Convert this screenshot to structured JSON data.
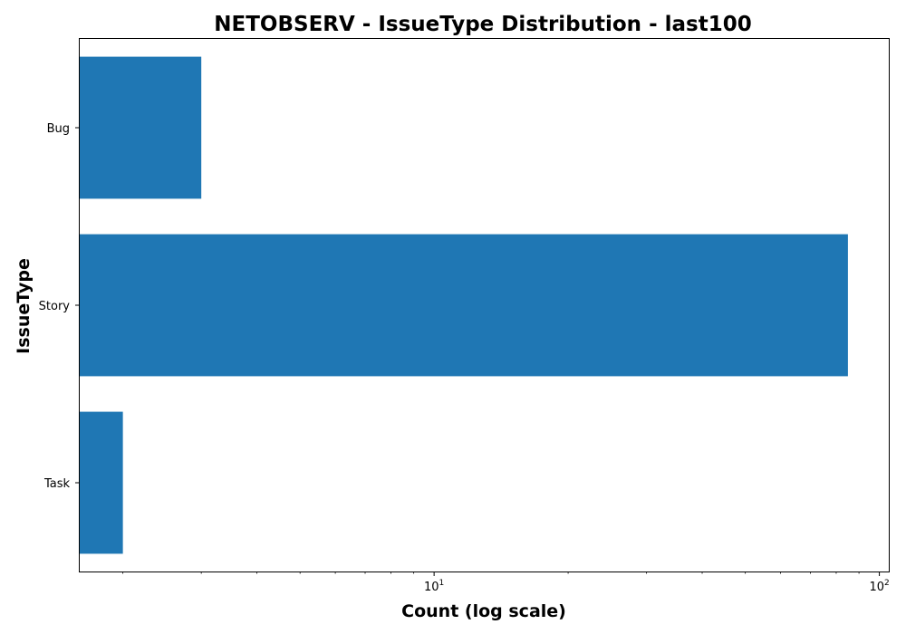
{
  "chart_data": {
    "type": "bar",
    "orientation": "horizontal",
    "title": "NETOBSERV - IssueType Distribution - last100",
    "xlabel": "Count (log scale)",
    "ylabel": "IssueType",
    "x_scale": "log",
    "xlim": [
      1.6,
      105
    ],
    "x_ticks": [
      {
        "value": 10,
        "base": "10",
        "exp": "1"
      },
      {
        "value": 100,
        "base": "10",
        "exp": "2"
      }
    ],
    "categories": [
      "Bug",
      "Story",
      "Task"
    ],
    "values": [
      3,
      85,
      2
    ],
    "bar_color": "#1f77b4",
    "grid": false,
    "legend": "none"
  }
}
